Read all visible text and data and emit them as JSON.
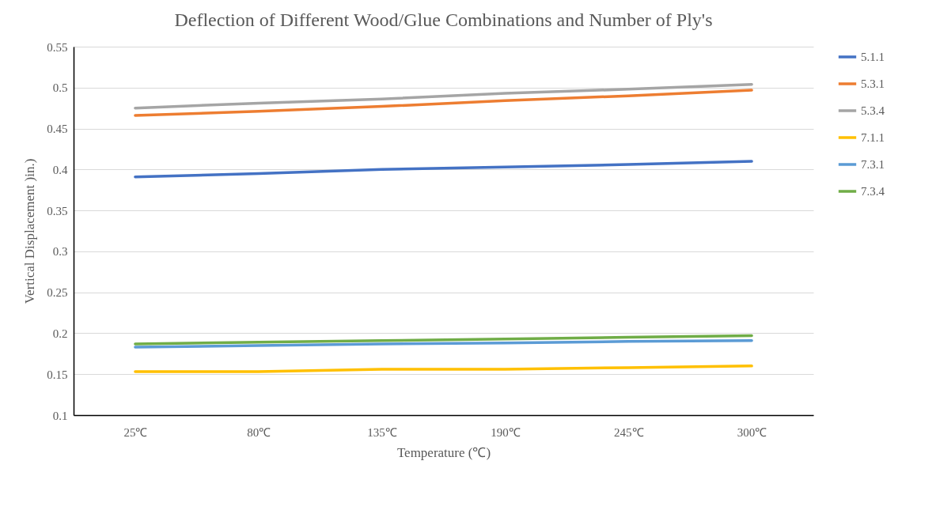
{
  "chart_data": {
    "type": "line",
    "title": "Deflection of Different Wood/Glue Combinations and Number of Ply's",
    "xlabel": "Temperature (℃)",
    "ylabel": "Vertical Displacement )in.)",
    "categories": [
      "25℃",
      "80℃",
      "135℃",
      "190℃",
      "245℃",
      "300℃"
    ],
    "ylim": [
      0.1,
      0.55
    ],
    "yticks": [
      0.1,
      0.15,
      0.2,
      0.25,
      0.3,
      0.35,
      0.4,
      0.45,
      0.5,
      0.55
    ],
    "grid": "y",
    "legend": "right",
    "marker": "none",
    "line_style": "solid",
    "series": [
      {
        "name": "5.1.1",
        "color": "#4472c4",
        "values": [
          0.391,
          0.395,
          0.4,
          0.403,
          0.406,
          0.41
        ]
      },
      {
        "name": "5.3.1",
        "color": "#ed7d31",
        "values": [
          0.466,
          0.471,
          0.477,
          0.484,
          0.49,
          0.497
        ]
      },
      {
        "name": "5.3.4",
        "color": "#a5a5a5",
        "values": [
          0.475,
          0.481,
          0.486,
          0.493,
          0.498,
          0.504
        ]
      },
      {
        "name": "7.1.1",
        "color": "#ffc000",
        "values": [
          0.153,
          0.153,
          0.156,
          0.156,
          0.158,
          0.16
        ]
      },
      {
        "name": "7.3.1",
        "color": "#5b9bd5",
        "values": [
          0.183,
          0.185,
          0.187,
          0.188,
          0.19,
          0.191
        ]
      },
      {
        "name": "7.3.4",
        "color": "#70ad47",
        "values": [
          0.187,
          0.189,
          0.191,
          0.193,
          0.195,
          0.197
        ]
      }
    ]
  }
}
